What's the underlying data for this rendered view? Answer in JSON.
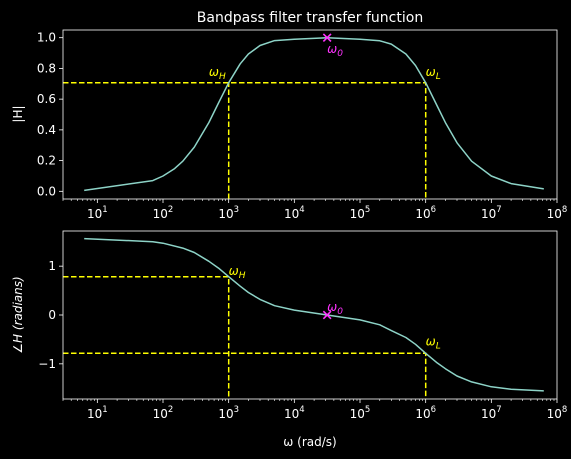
{
  "figure": {
    "background": "#000000",
    "foreground": "#ffffff"
  },
  "chart_data": [
    {
      "type": "line",
      "title": "Bandpass filter transfer function",
      "xlabel": "",
      "ylabel": "|H|",
      "xscale": "log",
      "xlim": [
        3.0,
        100000000.0
      ],
      "ylim": [
        -0.05,
        1.05
      ],
      "xticks": [
        10,
        100,
        1000,
        10000,
        100000,
        1000000,
        10000000,
        100000000
      ],
      "xtick_labels": [
        {
          "base": "10",
          "exp": "1"
        },
        {
          "base": "10",
          "exp": "2"
        },
        {
          "base": "10",
          "exp": "3"
        },
        {
          "base": "10",
          "exp": "4"
        },
        {
          "base": "10",
          "exp": "5"
        },
        {
          "base": "10",
          "exp": "6"
        },
        {
          "base": "10",
          "exp": "7"
        },
        {
          "base": "10",
          "exp": "8"
        }
      ],
      "yticks": [
        0.0,
        0.2,
        0.4,
        0.6,
        0.8,
        1.0
      ],
      "ytick_labels": [
        "0.0",
        "0.2",
        "0.4",
        "0.6",
        "0.8",
        "1.0"
      ],
      "grid": false,
      "series": [
        {
          "color": "#8dd3c7",
          "x": [
            6.3,
            70,
            100,
            150,
            200,
            300,
            500,
            700,
            1000,
            1500,
            2000,
            3000,
            5000,
            10000,
            31623,
            100000,
            200000,
            300000,
            500000,
            700000,
            1000000,
            1500000,
            2000000,
            3000000,
            5000000,
            10000000,
            20000000,
            63000000
          ],
          "y": [
            0.006,
            0.07,
            0.1,
            0.148,
            0.196,
            0.288,
            0.448,
            0.575,
            0.707,
            0.83,
            0.894,
            0.949,
            0.981,
            0.99,
            1.0,
            0.99,
            0.98,
            0.958,
            0.894,
            0.819,
            0.707,
            0.555,
            0.447,
            0.316,
            0.196,
            0.1,
            0.05,
            0.016
          ]
        }
      ],
      "guides": [
        {
          "color": "#ffff00",
          "style": "dashed",
          "points": [
            [
              3.0,
              0.707
            ],
            [
              1000000,
              0.707
            ],
            [
              1000000,
              -0.05
            ]
          ]
        },
        {
          "color": "#ffff00",
          "style": "dashed",
          "points": [
            [
              1000,
              -0.05
            ],
            [
              1000,
              0.707
            ]
          ]
        }
      ],
      "markers": [
        {
          "x": 31623,
          "y": 1.0,
          "symbol": "x",
          "color": "#ff33ff"
        }
      ],
      "annotations": [
        {
          "sym": "ω",
          "sub": "H",
          "x": 500,
          "y": 0.75,
          "color": "#ffff00"
        },
        {
          "sym": "ω",
          "sub": "L",
          "x": 1000000,
          "y": 0.75,
          "color": "#ffff00"
        },
        {
          "sym": "ω",
          "sub": "0",
          "x": 31623,
          "y": 0.9,
          "color": "#ff33ff"
        }
      ]
    },
    {
      "type": "line",
      "title": "",
      "xlabel": "ω (rad/s)",
      "ylabel": "∠H (radians)",
      "xscale": "log",
      "xlim": [
        3.0,
        100000000.0
      ],
      "ylim": [
        -1.72,
        1.72
      ],
      "xticks": [
        10,
        100,
        1000,
        10000,
        100000,
        1000000,
        10000000,
        100000000
      ],
      "xtick_labels": [
        {
          "base": "10",
          "exp": "1"
        },
        {
          "base": "10",
          "exp": "2"
        },
        {
          "base": "10",
          "exp": "3"
        },
        {
          "base": "10",
          "exp": "4"
        },
        {
          "base": "10",
          "exp": "5"
        },
        {
          "base": "10",
          "exp": "6"
        },
        {
          "base": "10",
          "exp": "7"
        },
        {
          "base": "10",
          "exp": "8"
        }
      ],
      "yticks": [
        -1,
        0,
        1
      ],
      "ytick_labels": [
        "−1",
        "0",
        "1"
      ],
      "grid": false,
      "series": [
        {
          "color": "#8dd3c7",
          "x": [
            6.3,
            70,
            100,
            200,
            300,
            500,
            700,
            1000,
            1500,
            2000,
            3000,
            5000,
            10000,
            31623,
            100000,
            200000,
            300000,
            500000,
            700000,
            1000000,
            1500000,
            2000000,
            3000000,
            5000000,
            10000000,
            20000000,
            63000000
          ],
          "y": [
            1.564,
            1.5,
            1.47,
            1.37,
            1.28,
            1.1,
            0.96,
            0.785,
            0.59,
            0.46,
            0.32,
            0.19,
            0.1,
            0.0,
            -0.1,
            -0.2,
            -0.32,
            -0.46,
            -0.6,
            -0.785,
            -0.98,
            -1.1,
            -1.25,
            -1.37,
            -1.47,
            -1.52,
            -1.555
          ]
        }
      ],
      "guides": [
        {
          "color": "#ffff00",
          "style": "dashed",
          "points": [
            [
              3.0,
              0.785
            ],
            [
              1000,
              0.785
            ],
            [
              1000,
              -1.72
            ]
          ]
        },
        {
          "color": "#ffff00",
          "style": "dashed",
          "points": [
            [
              3.0,
              -0.785
            ],
            [
              1000000,
              -0.785
            ],
            [
              1000000,
              -1.72
            ]
          ]
        }
      ],
      "markers": [
        {
          "x": 31623,
          "y": 0.0,
          "symbol": "x",
          "color": "#ff33ff"
        }
      ],
      "annotations": [
        {
          "sym": "ω",
          "sub": "H",
          "x": 1000,
          "y": 0.82,
          "color": "#ffff00"
        },
        {
          "sym": "ω",
          "sub": "L",
          "x": 1000000,
          "y": -0.62,
          "color": "#ffff00"
        },
        {
          "sym": "ω",
          "sub": "0",
          "x": 31623,
          "y": 0.08,
          "color": "#ff33ff"
        }
      ]
    }
  ]
}
